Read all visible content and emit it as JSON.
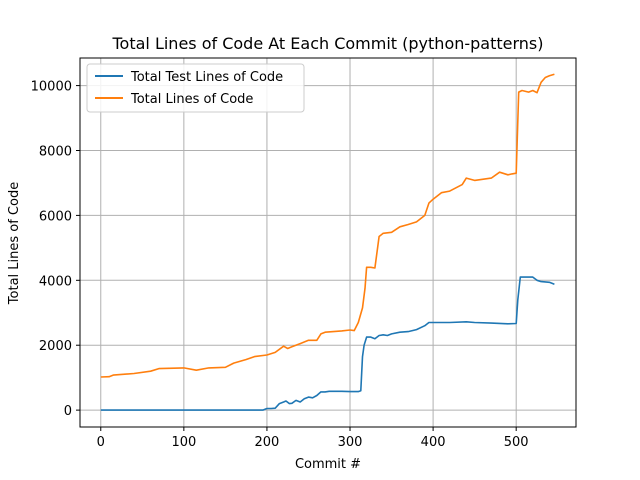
{
  "chart_data": {
    "type": "line",
    "title": "Total Lines of Code At Each Commit (python-patterns)",
    "xlabel": "Commit #",
    "ylabel": "Total Lines of Code",
    "xlim": [
      -25,
      572
    ],
    "ylim": [
      -520,
      10850
    ],
    "xticks": [
      0,
      100,
      200,
      300,
      400,
      500
    ],
    "yticks": [
      0,
      2000,
      4000,
      6000,
      8000,
      10000
    ],
    "grid": true,
    "legend_position": "top-left",
    "series": [
      {
        "name": "Total Test Lines of Code",
        "color": "#1f77b4",
        "x": [
          0,
          50,
          100,
          150,
          195,
          200,
          205,
          210,
          215,
          220,
          223,
          227,
          230,
          235,
          240,
          245,
          250,
          255,
          260,
          265,
          270,
          275,
          280,
          290,
          300,
          310,
          313,
          315,
          317,
          320,
          325,
          330,
          335,
          340,
          345,
          350,
          360,
          370,
          380,
          390,
          395,
          400,
          420,
          440,
          450,
          470,
          490,
          500,
          502,
          505,
          510,
          520,
          525,
          530,
          540,
          546
        ],
        "y": [
          0,
          0,
          0,
          0,
          0,
          50,
          50,
          60,
          200,
          250,
          280,
          200,
          210,
          300,
          250,
          350,
          400,
          380,
          450,
          560,
          560,
          580,
          580,
          580,
          570,
          570,
          600,
          1650,
          2000,
          2250,
          2250,
          2200,
          2300,
          2320,
          2300,
          2350,
          2400,
          2420,
          2480,
          2600,
          2700,
          2700,
          2700,
          2720,
          2700,
          2680,
          2660,
          2670,
          3400,
          4100,
          4100,
          4100,
          4000,
          3960,
          3940,
          3880
        ]
      },
      {
        "name": "Total Lines of Code",
        "color": "#ff7f0e",
        "x": [
          0,
          10,
          15,
          40,
          60,
          70,
          100,
          115,
          130,
          150,
          160,
          175,
          185,
          200,
          210,
          220,
          225,
          230,
          240,
          250,
          260,
          265,
          270,
          280,
          290,
          300,
          305,
          310,
          315,
          318,
          320,
          325,
          330,
          335,
          340,
          350,
          360,
          370,
          380,
          390,
          395,
          400,
          410,
          420,
          435,
          440,
          450,
          470,
          480,
          490,
          495,
          500,
          503,
          507,
          515,
          520,
          525,
          530,
          535,
          540,
          546
        ],
        "y": [
          1020,
          1030,
          1080,
          1130,
          1200,
          1280,
          1300,
          1230,
          1300,
          1320,
          1450,
          1560,
          1650,
          1700,
          1780,
          1970,
          1900,
          1950,
          2050,
          2150,
          2150,
          2350,
          2400,
          2420,
          2440,
          2470,
          2450,
          2700,
          3150,
          3750,
          4400,
          4400,
          4380,
          5350,
          5450,
          5480,
          5650,
          5720,
          5800,
          6000,
          6380,
          6500,
          6700,
          6750,
          6950,
          7150,
          7080,
          7150,
          7330,
          7250,
          7280,
          7300,
          9800,
          9850,
          9800,
          9850,
          9780,
          10100,
          10250,
          10300,
          10350
        ]
      }
    ]
  }
}
